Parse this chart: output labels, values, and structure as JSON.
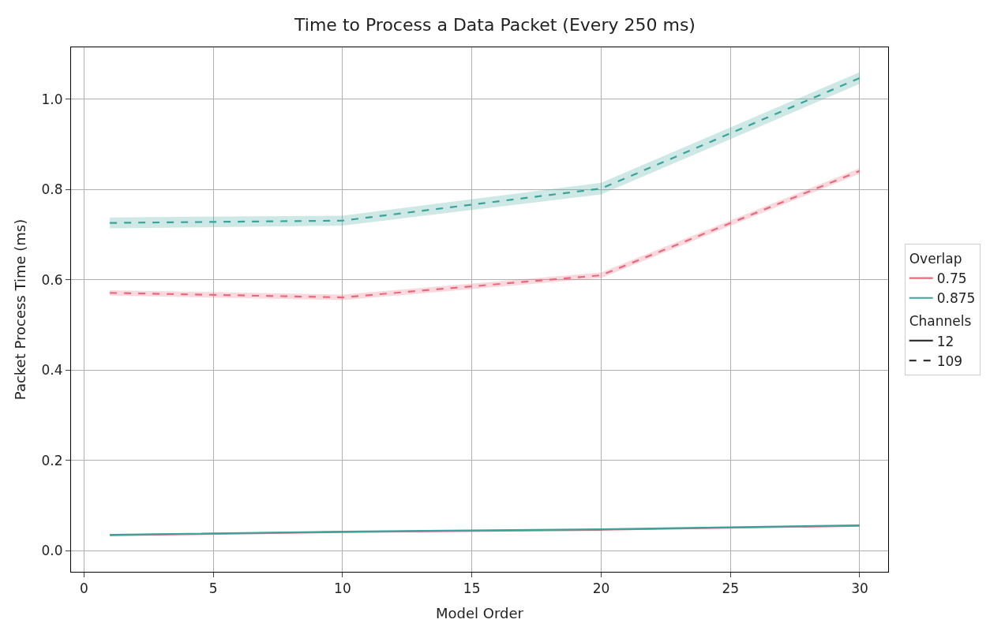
{
  "chart_data": {
    "type": "line",
    "title": "Time to Process a Data Packet (Every 250 ms)",
    "xlabel": "Model Order",
    "ylabel": "Packet Process Time (ms)",
    "legend_title": [
      "Overlap",
      "Channels"
    ],
    "x": [
      1,
      10,
      20,
      30
    ],
    "series": [
      {
        "name": "0.75",
        "color": "#e8697c",
        "line_style": "solid",
        "values": [
          0.034,
          0.041,
          0.046,
          0.055
        ]
      },
      {
        "name": "0.875",
        "color": "#3aa39b",
        "line_style": "solid",
        "values": [
          0.035,
          0.042,
          0.047,
          0.056
        ]
      },
      {
        "color": "#e8697c",
        "line_style": "dashed",
        "values": [
          0.571,
          0.561,
          0.61,
          0.841
        ],
        "lower": [
          0.565,
          0.555,
          0.604,
          0.835
        ],
        "upper": [
          0.577,
          0.567,
          0.616,
          0.847
        ]
      },
      {
        "color": "#3aa39b",
        "line_style": "dashed",
        "values": [
          0.726,
          0.731,
          0.802,
          1.047
        ],
        "lower": [
          0.714,
          0.72,
          0.789,
          1.034
        ],
        "upper": [
          0.738,
          0.742,
          0.815,
          1.06
        ]
      },
      {
        "name": "12",
        "color": "#333333",
        "line_style": "solid",
        "values": [
          null,
          null,
          null,
          null
        ]
      },
      {
        "name": "109",
        "color": "#333333",
        "line_style": "dashed",
        "values": [
          null,
          null,
          null,
          null
        ]
      }
    ],
    "xlim": [
      -0.5,
      31.1
    ],
    "xticks": [
      0,
      5,
      10,
      15,
      20,
      25,
      30
    ],
    "ylim": [
      -0.047,
      1.115
    ],
    "yticks": [
      {
        "value": 0.0,
        "label": "0.0"
      },
      {
        "value": 0.2,
        "label": "0.2"
      },
      {
        "value": 0.4,
        "label": "0.4"
      },
      {
        "value": 0.6,
        "label": "0.6"
      },
      {
        "value": 0.8,
        "label": "0.8"
      },
      {
        "value": 1.0,
        "label": "1.0"
      }
    ],
    "grid": true,
    "legend": "right",
    "marker": "none"
  }
}
